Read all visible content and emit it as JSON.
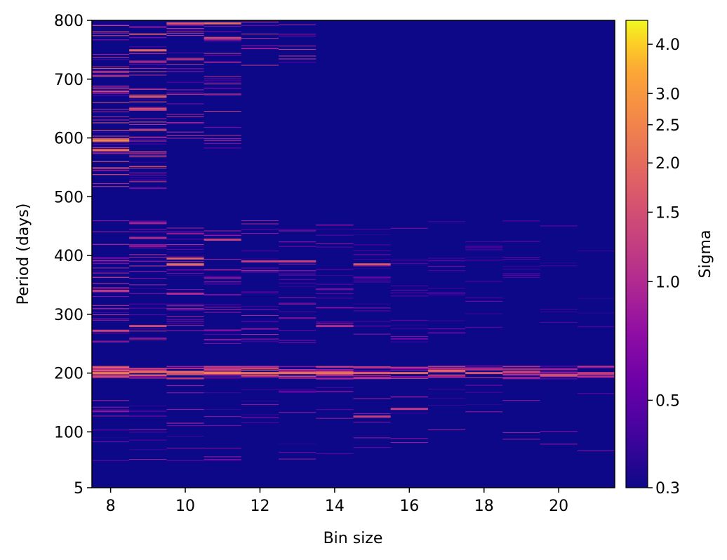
{
  "chart_data": {
    "type": "heatmap",
    "xlabel": "Bin size",
    "ylabel": "Period (days)",
    "colorbar_label": "Sigma",
    "colormap": "plasma",
    "background_color": "#0d0887",
    "x_bins": [
      8,
      9,
      10,
      11,
      12,
      13,
      14,
      15,
      16,
      17,
      18,
      19,
      20,
      21
    ],
    "xlim": [
      7.5,
      21.5
    ],
    "ylim": [
      5,
      800
    ],
    "x_ticks": [
      8,
      10,
      12,
      14,
      16,
      18,
      20
    ],
    "y_ticks": [
      5,
      100,
      200,
      300,
      400,
      500,
      600,
      700,
      800
    ],
    "color_scale": {
      "type": "log",
      "min": 0.3,
      "max": 4.6
    },
    "colorbar_ticks": [
      0.3,
      0.5,
      1.0,
      1.5,
      2.0,
      2.5,
      3.0,
      4.0
    ],
    "colorbar_tick_labels": [
      "0.3",
      "0.5",
      "1.0",
      "1.5",
      "2.0",
      "2.5",
      "3.0",
      "4.0"
    ],
    "highlights": [
      {
        "bin": 8,
        "period": 596,
        "sigma": 2.5
      },
      {
        "bin": 8,
        "period": 579,
        "sigma": 2.2
      },
      {
        "bin": 8,
        "period": 200,
        "sigma": 2.3
      },
      {
        "bin": 8,
        "period": 340,
        "sigma": 1.2
      },
      {
        "bin": 8,
        "period": 272,
        "sigma": 1.3
      },
      {
        "bin": 9,
        "period": 670,
        "sigma": 1.6
      },
      {
        "bin": 9,
        "period": 648,
        "sigma": 1.3
      },
      {
        "bin": 9,
        "period": 749,
        "sigma": 1.9
      },
      {
        "bin": 9,
        "period": 202,
        "sigma": 2.0
      },
      {
        "bin": 9,
        "period": 280,
        "sigma": 1.4
      },
      {
        "bin": 9,
        "period": 430,
        "sigma": 1.0
      },
      {
        "bin": 10,
        "period": 795,
        "sigma": 1.6
      },
      {
        "bin": 10,
        "period": 385,
        "sigma": 2.0
      },
      {
        "bin": 10,
        "period": 395,
        "sigma": 1.8
      },
      {
        "bin": 10,
        "period": 202,
        "sigma": 2.0
      },
      {
        "bin": 10,
        "period": 335,
        "sigma": 1.0
      },
      {
        "bin": 11,
        "period": 795,
        "sigma": 2.0
      },
      {
        "bin": 11,
        "period": 770,
        "sigma": 1.4
      },
      {
        "bin": 11,
        "period": 200,
        "sigma": 2.4
      },
      {
        "bin": 11,
        "period": 427,
        "sigma": 1.3
      },
      {
        "bin": 12,
        "period": 200,
        "sigma": 2.1
      },
      {
        "bin": 12,
        "period": 390,
        "sigma": 1.2
      },
      {
        "bin": 13,
        "period": 200,
        "sigma": 2.1
      },
      {
        "bin": 13,
        "period": 390,
        "sigma": 1.3
      },
      {
        "bin": 14,
        "period": 200,
        "sigma": 2.1
      },
      {
        "bin": 14,
        "period": 280,
        "sigma": 1.0
      },
      {
        "bin": 15,
        "period": 385,
        "sigma": 1.6
      },
      {
        "bin": 15,
        "period": 200,
        "sigma": 1.8
      },
      {
        "bin": 15,
        "period": 126,
        "sigma": 1.3
      },
      {
        "bin": 16,
        "period": 200,
        "sigma": 1.9
      },
      {
        "bin": 16,
        "period": 139,
        "sigma": 1.2
      },
      {
        "bin": 17,
        "period": 204,
        "sigma": 1.9
      },
      {
        "bin": 18,
        "period": 200,
        "sigma": 1.6
      },
      {
        "bin": 19,
        "period": 202,
        "sigma": 1.4
      },
      {
        "bin": 20,
        "period": 196,
        "sigma": 1.5
      },
      {
        "bin": 21,
        "period": 200,
        "sigma": 1.2
      }
    ]
  }
}
